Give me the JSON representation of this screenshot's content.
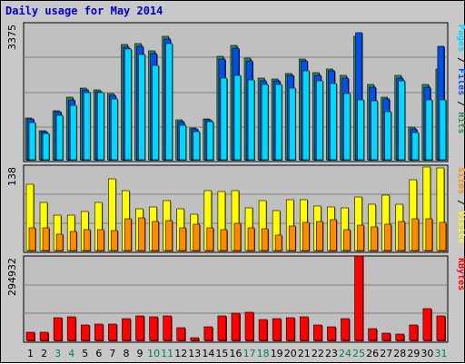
{
  "title": "Daily usage for May 2014",
  "chart_data": {
    "type": "bar",
    "title": "Daily usage for May 2014",
    "categories": [
      "1",
      "2",
      "3",
      "4",
      "5",
      "6",
      "7",
      "8",
      "9",
      "10",
      "11",
      "12",
      "13",
      "14",
      "15",
      "16",
      "17",
      "18",
      "19",
      "20",
      "21",
      "22",
      "23",
      "24",
      "25",
      "26",
      "27",
      "28",
      "29",
      "30",
      "31"
    ],
    "weekend_days": [
      "3",
      "4",
      "10",
      "11",
      "17",
      "18",
      "24",
      "25",
      "31"
    ],
    "panels": [
      {
        "id": "top",
        "max_label": "3375",
        "ymax": 3375,
        "axis_title": [
          "Pages",
          "Files",
          "Hits"
        ],
        "series": [
          {
            "name": "Hits",
            "color": "#2e8b57",
            "values": [
              1050,
              730,
              1220,
              1560,
              1790,
              1740,
              1650,
              2880,
              2900,
              2720,
              3090,
              990,
              790,
              1020,
              2580,
              2850,
              2530,
              2030,
              2020,
              2160,
              2520,
              2170,
              2260,
              2100,
              3090,
              1870,
              1570,
              2100,
              820,
              1870,
              2270
            ]
          },
          {
            "name": "Files",
            "color": "#0050e8",
            "values": [
              1010,
              710,
              1190,
              1490,
              1740,
              1690,
              1600,
              2800,
              2830,
              2650,
              3010,
              950,
              760,
              990,
              2520,
              2790,
              2470,
              1980,
              1980,
              2100,
              2460,
              2100,
              2230,
              2040,
              3170,
              1820,
              1520,
              2040,
              780,
              1810,
              2830
            ]
          },
          {
            "name": "Pages",
            "color": "#00d8ff",
            "values": [
              940,
              660,
              1120,
              1360,
              1680,
              1680,
              1520,
              2760,
              2620,
              2350,
              2890,
              860,
              700,
              950,
              2030,
              2100,
              2000,
              1870,
              1890,
              1800,
              2220,
              1970,
              1900,
              1650,
              1500,
              1470,
              1210,
              1960,
              690,
              1500,
              1490
            ]
          }
        ]
      },
      {
        "id": "mid",
        "max_label": "138",
        "ymax": 138,
        "axis_title": [
          "Sites",
          "Visits"
        ],
        "series": [
          {
            "name": "Visits",
            "color": "#ffff00",
            "values": [
              110,
              79,
              59,
              58,
              64,
              79,
              118,
              99,
              69,
              72,
              82,
              69,
              60,
              99,
              98,
              99,
              70,
              82,
              66,
              84,
              84,
              74,
              72,
              70,
              89,
              76,
              92,
              77,
              117,
              138,
              136
            ]
          },
          {
            "name": "Sites",
            "color": "#ff8c00",
            "values": [
              38,
              37,
              27,
              32,
              34,
              34,
              33,
              52,
              54,
              48,
              49,
              38,
              43,
              37,
              35,
              45,
              38,
              36,
              26,
              40,
              46,
              48,
              51,
              35,
              42,
              39,
              43,
              48,
              52,
              53,
              46
            ]
          }
        ]
      },
      {
        "id": "bot",
        "max_label": "294932",
        "ymax": 294932,
        "axis_title": [
          "KBytes"
        ],
        "series": [
          {
            "name": "KBytes",
            "color": "#ff0000",
            "values": [
              28000,
              28000,
              82000,
              84000,
              54000,
              57000,
              57000,
              78000,
              87000,
              84000,
              88000,
              44000,
              9000,
              47000,
              86000,
              98000,
              102000,
              74000,
              78000,
              81000,
              84000,
              55000,
              48000,
              77000,
              300000,
              41000,
              27000,
              24000,
              56000,
              114000,
              86000
            ]
          }
        ]
      }
    ]
  }
}
